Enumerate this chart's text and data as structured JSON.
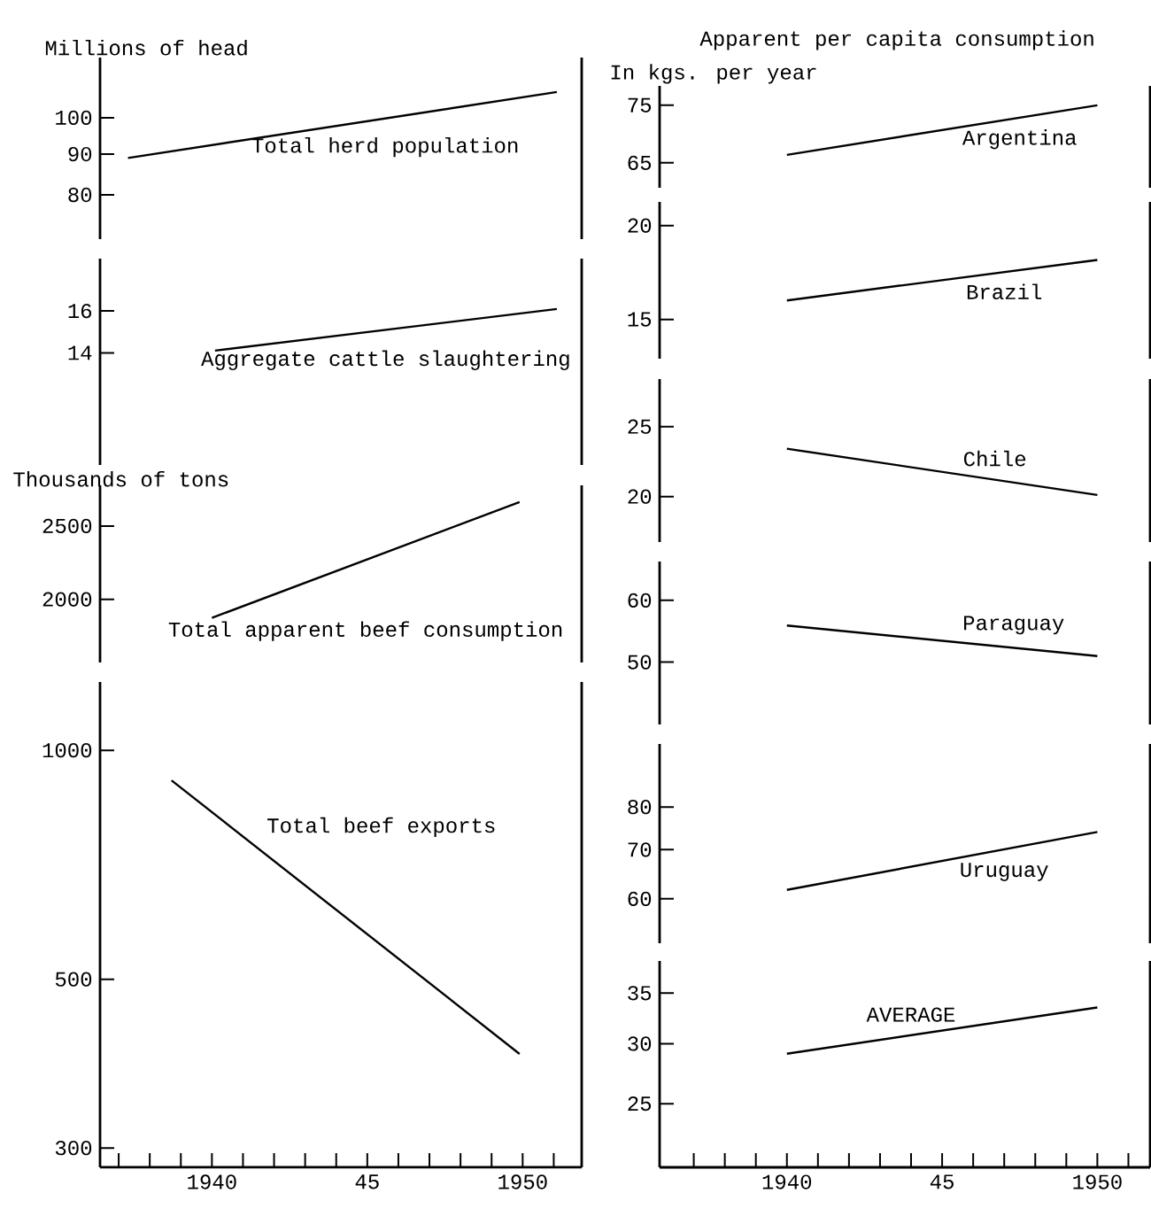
{
  "chart_data": [
    {
      "type": "line",
      "ylabel": "Millions of head",
      "log": true,
      "xlim": [
        1936.4,
        1951.9
      ],
      "ylim": [
        70.4,
        119
      ],
      "yticks": [
        80,
        90,
        100
      ],
      "tick_labels": "y",
      "series": [
        {
          "name": "Total herd population",
          "color": "#000000",
          "x": [
            1937.3,
            1951.1
          ],
          "values": [
            89,
            107.7
          ]
        }
      ]
    },
    {
      "type": "line",
      "log": true,
      "xlim": [
        1936.4,
        1951.9
      ],
      "ylim": [
        9.8,
        18.9
      ],
      "yticks": [
        14,
        16
      ],
      "tick_labels": "y",
      "series": [
        {
          "name": "Aggregate cattle slaughtering",
          "color": "#000000",
          "x": [
            1940.1,
            1951.1
          ],
          "values": [
            14.1,
            16.1
          ]
        }
      ]
    },
    {
      "type": "line",
      "ylabel": "Thousands of tons",
      "log": true,
      "xlim": [
        1936.4,
        1951.9
      ],
      "ylim": [
        1650,
        2830
      ],
      "yticks": [
        2000,
        2500
      ],
      "tick_labels": "y",
      "series": [
        {
          "name": "Total apparent beef consumption",
          "color": "#000000",
          "x": [
            1940,
            1949.9
          ],
          "values": [
            1890,
            2690
          ]
        }
      ]
    },
    {
      "type": "line",
      "log": true,
      "xlim": [
        1936.4,
        1951.9
      ],
      "ylim": [
        283,
        1230
      ],
      "yticks": [
        300,
        500,
        1000
      ],
      "xticks": [
        {
          "value": 1937,
          "label": null
        },
        {
          "value": 1938,
          "label": null
        },
        {
          "value": 1939,
          "label": null
        },
        {
          "value": 1940,
          "label": "1940"
        },
        {
          "value": 1941,
          "label": null
        },
        {
          "value": 1942,
          "label": null
        },
        {
          "value": 1943,
          "label": null
        },
        {
          "value": 1944,
          "label": null
        },
        {
          "value": 1945,
          "label": "45"
        },
        {
          "value": 1946,
          "label": null
        },
        {
          "value": 1947,
          "label": null
        },
        {
          "value": 1948,
          "label": null
        },
        {
          "value": 1949,
          "label": null
        },
        {
          "value": 1950,
          "label": "1950"
        },
        {
          "value": 1951,
          "label": null
        }
      ],
      "series": [
        {
          "name": "Total beef exports",
          "color": "#000000",
          "x": [
            1938.7,
            1949.9
          ],
          "values": [
            913,
            399
          ]
        }
      ]
    },
    {
      "type": "line",
      "title": "Apparent per capita consumption",
      "ylabel": "In kgs. per year",
      "log": true,
      "xlim": [
        1935.9,
        1951.7
      ],
      "ylim": [
        61.1,
        78.7
      ],
      "yticks": [
        65,
        75
      ],
      "tick_labels": "y",
      "series": [
        {
          "name": "Argentina",
          "color": "#000000",
          "x": [
            1940,
            1950
          ],
          "values": [
            66.3,
            75
          ]
        }
      ]
    },
    {
      "type": "line",
      "log": true,
      "xlim": [
        1935.9,
        1951.7
      ],
      "ylim": [
        13.3,
        21.5
      ],
      "yticks": [
        15,
        20
      ],
      "tick_labels": "y",
      "series": [
        {
          "name": "Brazil",
          "color": "#000000",
          "x": [
            1940,
            1950
          ],
          "values": [
            15.9,
            18.0
          ]
        }
      ]
    },
    {
      "type": "line",
      "log": true,
      "xlim": [
        1935.9,
        1951.7
      ],
      "ylim": [
        17.3,
        29.1
      ],
      "yticks": [
        20,
        25
      ],
      "tick_labels": "y",
      "series": [
        {
          "name": "Chile",
          "color": "#000000",
          "x": [
            1940,
            1950
          ],
          "values": [
            23.3,
            20.1
          ]
        }
      ]
    },
    {
      "type": "line",
      "log": true,
      "xlim": [
        1935.9,
        1951.7
      ],
      "ylim": [
        41.6,
        67.3
      ],
      "yticks": [
        50,
        60
      ],
      "tick_labels": "y",
      "series": [
        {
          "name": "Paraguay",
          "color": "#000000",
          "x": [
            1940,
            1950
          ],
          "values": [
            55.7,
            50.9
          ]
        }
      ]
    },
    {
      "type": "line",
      "log": true,
      "xlim": [
        1935.9,
        1951.7
      ],
      "ylim": [
        52.2,
        97.5
      ],
      "yticks": [
        60,
        70,
        80
      ],
      "tick_labels": "y",
      "series": [
        {
          "name": "Uruguay",
          "color": "#000000",
          "x": [
            1940,
            1950
          ],
          "values": [
            61.7,
            74.0
          ]
        }
      ]
    },
    {
      "type": "line",
      "log": true,
      "xlim": [
        1935.9,
        1951.7
      ],
      "ylim": [
        20.6,
        38.6
      ],
      "yticks": [
        25,
        30,
        35
      ],
      "xticks": [
        {
          "value": 1937,
          "label": null
        },
        {
          "value": 1938,
          "label": null
        },
        {
          "value": 1939,
          "label": null
        },
        {
          "value": 1940,
          "label": "1940"
        },
        {
          "value": 1941,
          "label": null
        },
        {
          "value": 1942,
          "label": null
        },
        {
          "value": 1943,
          "label": null
        },
        {
          "value": 1944,
          "label": null
        },
        {
          "value": 1945,
          "label": "45"
        },
        {
          "value": 1946,
          "label": null
        },
        {
          "value": 1947,
          "label": null
        },
        {
          "value": 1948,
          "label": null
        },
        {
          "value": 1949,
          "label": null
        },
        {
          "value": 1950,
          "label": "1950"
        },
        {
          "value": 1951,
          "label": null
        }
      ],
      "series": [
        {
          "name": "AVERAGE",
          "color": "#000000",
          "x": [
            1940,
            1950
          ],
          "values": [
            29.1,
            33.5
          ]
        }
      ]
    }
  ]
}
